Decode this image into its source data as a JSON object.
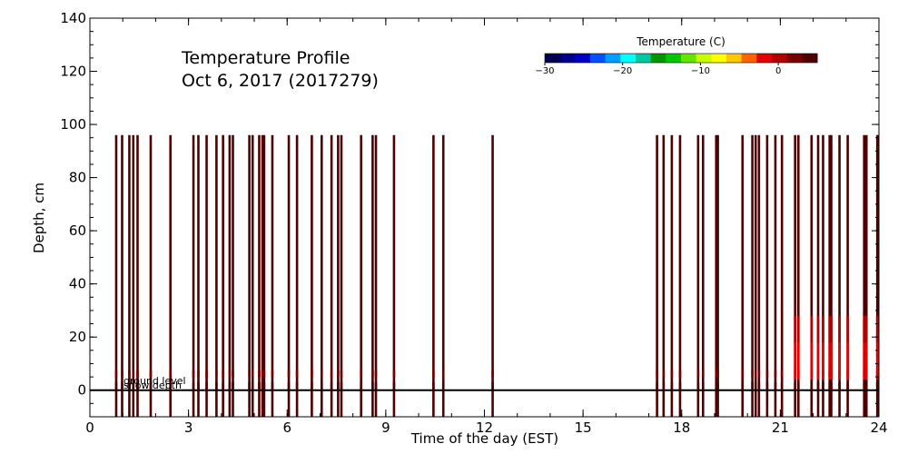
{
  "chart_data": {
    "type": "heatmap",
    "title_line1": "Temperature Profile",
    "title_line2": "Oct  6, 2017 (2017279)",
    "xlabel": "Time of the day (EST)",
    "ylabel": "Depth, cm",
    "xlim": [
      0,
      24
    ],
    "ylim": [
      -10,
      140
    ],
    "xticks": [
      0,
      3,
      6,
      9,
      12,
      15,
      18,
      21,
      24
    ],
    "xtick_labels": [
      "0",
      "3",
      "6",
      "9",
      "12",
      "15",
      "18",
      "21",
      "24"
    ],
    "yticks": [
      0,
      20,
      40,
      60,
      80,
      100,
      120,
      140
    ],
    "ytick_labels": [
      "0",
      "20",
      "40",
      "60",
      "80",
      "100",
      "120",
      "140"
    ],
    "colorbar": {
      "title": "Temperature (C)",
      "range": [
        -30,
        5
      ],
      "ticks": [
        -30,
        -20,
        -10,
        0
      ],
      "tick_labels": [
        "−30",
        "−20",
        "−10",
        "0"
      ],
      "colors": [
        "#000050",
        "#00008c",
        "#0000c8",
        "#0050ff",
        "#00a0ff",
        "#00ffff",
        "#00c8a0",
        "#009600",
        "#00c800",
        "#64e600",
        "#c8ff00",
        "#ffff00",
        "#ffc800",
        "#ff6400",
        "#e60000",
        "#b40000",
        "#780000",
        "#500000"
      ]
    },
    "annotations": {
      "ground_level": "ground level",
      "snow_depth": "snow depth",
      "ground_level_depth": 0
    },
    "profile_top_depth": 96,
    "profile_bottom_depth": -10,
    "observation_times": [
      0.8,
      0.98,
      1.2,
      1.32,
      1.45,
      1.85,
      2.45,
      3.15,
      3.3,
      3.55,
      3.85,
      4.05,
      4.25,
      4.35,
      4.85,
      4.95,
      5.15,
      5.25,
      5.3,
      5.55,
      6.05,
      6.3,
      6.75,
      7.05,
      7.35,
      7.55,
      7.65,
      8.25,
      8.6,
      8.7,
      9.25,
      10.45,
      10.75,
      12.25,
      17.25,
      17.45,
      17.7,
      17.95,
      18.5,
      18.65,
      19.05,
      19.1,
      19.85,
      20.15,
      20.25,
      20.35,
      20.6,
      20.85,
      21.05,
      21.45,
      21.55,
      21.95,
      22.15,
      22.3,
      22.5,
      22.55,
      22.8,
      23.05,
      23.55,
      23.62,
      23.95,
      24.0
    ],
    "profile_layers": [
      {
        "from": 7.5,
        "to": 5,
        "temp": 1.5
      },
      {
        "from": 3,
        "to": 0,
        "temp": 3.5
      }
    ],
    "warm_period": {
      "start": 21.45,
      "end": 24.0,
      "layers": [
        {
          "from": 28,
          "to": 18,
          "temp": -0.5
        },
        {
          "from": 18,
          "to": 13,
          "temp": -1.5
        },
        {
          "from": 13,
          "to": 8,
          "temp": -2.5
        },
        {
          "from": 8,
          "to": 4,
          "temp": -1.0
        }
      ]
    },
    "base_temp": 4.5
  }
}
